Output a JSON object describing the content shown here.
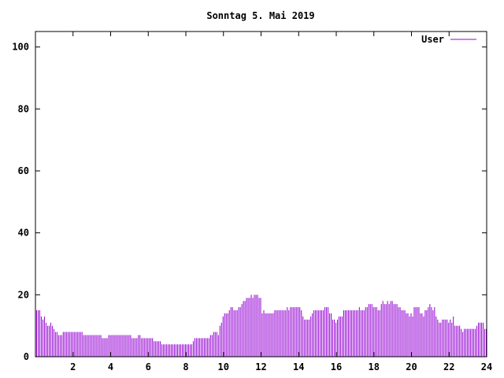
{
  "chart_data": {
    "type": "bar",
    "title": "Sonntag 5. Mai 2019",
    "xlabel": "",
    "ylabel": "",
    "xlim": [
      0,
      24
    ],
    "ylim": [
      0,
      105
    ],
    "xticks": [
      2,
      4,
      6,
      8,
      10,
      12,
      14,
      16,
      18,
      20,
      22,
      24
    ],
    "yticks": [
      0,
      20,
      40,
      60,
      80,
      100
    ],
    "grid": false,
    "legend_position": "top-right",
    "series": [
      {
        "name": "User",
        "color": "#9400d3",
        "points": [
          [
            0.083,
            15
          ],
          [
            0.167,
            15
          ],
          [
            0.25,
            15
          ],
          [
            0.333,
            13
          ],
          [
            0.417,
            12
          ],
          [
            0.5,
            13
          ],
          [
            0.583,
            11
          ],
          [
            0.667,
            10
          ],
          [
            0.75,
            10
          ],
          [
            0.833,
            11
          ],
          [
            0.917,
            10
          ],
          [
            1.0,
            9
          ],
          [
            1.083,
            8
          ],
          [
            1.167,
            8
          ],
          [
            1.25,
            7
          ],
          [
            1.333,
            7
          ],
          [
            1.417,
            7
          ],
          [
            1.5,
            8
          ],
          [
            1.583,
            8
          ],
          [
            1.667,
            8
          ],
          [
            1.75,
            8
          ],
          [
            1.833,
            8
          ],
          [
            1.917,
            8
          ],
          [
            2.0,
            8
          ],
          [
            2.083,
            8
          ],
          [
            2.167,
            8
          ],
          [
            2.25,
            8
          ],
          [
            2.333,
            8
          ],
          [
            2.417,
            8
          ],
          [
            2.5,
            8
          ],
          [
            2.583,
            7
          ],
          [
            2.667,
            7
          ],
          [
            2.75,
            7
          ],
          [
            2.833,
            7
          ],
          [
            2.917,
            7
          ],
          [
            3.0,
            7
          ],
          [
            3.083,
            7
          ],
          [
            3.167,
            7
          ],
          [
            3.25,
            7
          ],
          [
            3.333,
            7
          ],
          [
            3.417,
            7
          ],
          [
            3.5,
            7
          ],
          [
            3.583,
            6
          ],
          [
            3.667,
            6
          ],
          [
            3.75,
            6
          ],
          [
            3.833,
            6
          ],
          [
            3.917,
            7
          ],
          [
            4.0,
            7
          ],
          [
            4.083,
            7
          ],
          [
            4.167,
            7
          ],
          [
            4.25,
            7
          ],
          [
            4.333,
            7
          ],
          [
            4.417,
            7
          ],
          [
            4.5,
            7
          ],
          [
            4.583,
            7
          ],
          [
            4.667,
            7
          ],
          [
            4.75,
            7
          ],
          [
            4.833,
            7
          ],
          [
            4.917,
            7
          ],
          [
            5.0,
            7
          ],
          [
            5.083,
            7
          ],
          [
            5.167,
            6
          ],
          [
            5.25,
            6
          ],
          [
            5.333,
            6
          ],
          [
            5.417,
            6
          ],
          [
            5.5,
            7
          ],
          [
            5.583,
            7
          ],
          [
            5.667,
            6
          ],
          [
            5.75,
            6
          ],
          [
            5.833,
            6
          ],
          [
            5.917,
            6
          ],
          [
            6.0,
            6
          ],
          [
            6.083,
            6
          ],
          [
            6.167,
            6
          ],
          [
            6.25,
            6
          ],
          [
            6.333,
            5
          ],
          [
            6.417,
            5
          ],
          [
            6.5,
            5
          ],
          [
            6.583,
            5
          ],
          [
            6.667,
            5
          ],
          [
            6.75,
            4
          ],
          [
            6.833,
            4
          ],
          [
            6.917,
            4
          ],
          [
            7.0,
            4
          ],
          [
            7.083,
            4
          ],
          [
            7.167,
            4
          ],
          [
            7.25,
            4
          ],
          [
            7.333,
            4
          ],
          [
            7.417,
            4
          ],
          [
            7.5,
            4
          ],
          [
            7.583,
            4
          ],
          [
            7.667,
            4
          ],
          [
            7.75,
            4
          ],
          [
            7.833,
            4
          ],
          [
            7.917,
            4
          ],
          [
            8.0,
            4
          ],
          [
            8.083,
            4
          ],
          [
            8.167,
            4
          ],
          [
            8.25,
            4
          ],
          [
            8.333,
            4
          ],
          [
            8.417,
            5
          ],
          [
            8.5,
            6
          ],
          [
            8.583,
            6
          ],
          [
            8.667,
            6
          ],
          [
            8.75,
            6
          ],
          [
            8.833,
            6
          ],
          [
            8.917,
            6
          ],
          [
            9.0,
            6
          ],
          [
            9.083,
            6
          ],
          [
            9.167,
            6
          ],
          [
            9.25,
            6
          ],
          [
            9.333,
            7
          ],
          [
            9.417,
            7
          ],
          [
            9.5,
            8
          ],
          [
            9.583,
            8
          ],
          [
            9.667,
            8
          ],
          [
            9.75,
            7
          ],
          [
            9.833,
            10
          ],
          [
            9.917,
            11
          ],
          [
            10.0,
            13
          ],
          [
            10.083,
            14
          ],
          [
            10.167,
            14
          ],
          [
            10.25,
            14
          ],
          [
            10.333,
            15
          ],
          [
            10.417,
            16
          ],
          [
            10.5,
            16
          ],
          [
            10.583,
            15
          ],
          [
            10.667,
            15
          ],
          [
            10.75,
            15
          ],
          [
            10.833,
            16
          ],
          [
            10.917,
            16
          ],
          [
            11.0,
            17
          ],
          [
            11.083,
            18
          ],
          [
            11.167,
            18
          ],
          [
            11.25,
            19
          ],
          [
            11.333,
            19
          ],
          [
            11.417,
            19
          ],
          [
            11.5,
            20
          ],
          [
            11.583,
            19
          ],
          [
            11.667,
            20
          ],
          [
            11.75,
            20
          ],
          [
            11.833,
            20
          ],
          [
            11.917,
            19
          ],
          [
            12.0,
            19
          ],
          [
            12.083,
            14
          ],
          [
            12.167,
            15
          ],
          [
            12.25,
            14
          ],
          [
            12.333,
            14
          ],
          [
            12.417,
            14
          ],
          [
            12.5,
            14
          ],
          [
            12.583,
            14
          ],
          [
            12.667,
            14
          ],
          [
            12.75,
            15
          ],
          [
            12.833,
            15
          ],
          [
            12.917,
            15
          ],
          [
            13.0,
            15
          ],
          [
            13.083,
            15
          ],
          [
            13.167,
            15
          ],
          [
            13.25,
            15
          ],
          [
            13.333,
            15
          ],
          [
            13.417,
            16
          ],
          [
            13.5,
            15
          ],
          [
            13.583,
            16
          ],
          [
            13.667,
            16
          ],
          [
            13.75,
            16
          ],
          [
            13.833,
            16
          ],
          [
            13.917,
            16
          ],
          [
            14.0,
            16
          ],
          [
            14.083,
            16
          ],
          [
            14.167,
            15
          ],
          [
            14.25,
            13
          ],
          [
            14.333,
            12
          ],
          [
            14.417,
            12
          ],
          [
            14.5,
            12
          ],
          [
            14.583,
            12
          ],
          [
            14.667,
            13
          ],
          [
            14.75,
            14
          ],
          [
            14.833,
            15
          ],
          [
            14.917,
            15
          ],
          [
            15.0,
            15
          ],
          [
            15.083,
            15
          ],
          [
            15.167,
            15
          ],
          [
            15.25,
            15
          ],
          [
            15.333,
            15
          ],
          [
            15.417,
            16
          ],
          [
            15.5,
            16
          ],
          [
            15.583,
            16
          ],
          [
            15.667,
            14
          ],
          [
            15.75,
            14
          ],
          [
            15.833,
            12
          ],
          [
            15.917,
            12
          ],
          [
            16.0,
            11
          ],
          [
            16.083,
            12
          ],
          [
            16.167,
            13
          ],
          [
            16.25,
            13
          ],
          [
            16.333,
            13
          ],
          [
            16.417,
            15
          ],
          [
            16.5,
            15
          ],
          [
            16.583,
            15
          ],
          [
            16.667,
            15
          ],
          [
            16.75,
            15
          ],
          [
            16.833,
            15
          ],
          [
            16.917,
            15
          ],
          [
            17.0,
            15
          ],
          [
            17.083,
            15
          ],
          [
            17.167,
            15
          ],
          [
            17.25,
            16
          ],
          [
            17.333,
            15
          ],
          [
            17.417,
            15
          ],
          [
            17.5,
            15
          ],
          [
            17.583,
            16
          ],
          [
            17.667,
            16
          ],
          [
            17.75,
            17
          ],
          [
            17.833,
            17
          ],
          [
            17.917,
            17
          ],
          [
            18.0,
            16
          ],
          [
            18.083,
            16
          ],
          [
            18.167,
            16
          ],
          [
            18.25,
            15
          ],
          [
            18.333,
            15
          ],
          [
            18.417,
            17
          ],
          [
            18.5,
            18
          ],
          [
            18.583,
            17
          ],
          [
            18.667,
            17
          ],
          [
            18.75,
            18
          ],
          [
            18.833,
            17
          ],
          [
            18.917,
            18
          ],
          [
            19.0,
            18
          ],
          [
            19.083,
            17
          ],
          [
            19.167,
            17
          ],
          [
            19.25,
            17
          ],
          [
            19.333,
            16
          ],
          [
            19.417,
            16
          ],
          [
            19.5,
            15
          ],
          [
            19.583,
            15
          ],
          [
            19.667,
            15
          ],
          [
            19.75,
            14
          ],
          [
            19.833,
            14
          ],
          [
            19.917,
            13
          ],
          [
            20.0,
            14
          ],
          [
            20.083,
            13
          ],
          [
            20.167,
            16
          ],
          [
            20.25,
            16
          ],
          [
            20.333,
            16
          ],
          [
            20.417,
            16
          ],
          [
            20.5,
            14
          ],
          [
            20.583,
            14
          ],
          [
            20.667,
            13
          ],
          [
            20.75,
            15
          ],
          [
            20.833,
            15
          ],
          [
            20.917,
            16
          ],
          [
            21.0,
            17
          ],
          [
            21.083,
            16
          ],
          [
            21.167,
            15
          ],
          [
            21.25,
            16
          ],
          [
            21.333,
            13
          ],
          [
            21.417,
            12
          ],
          [
            21.5,
            11
          ],
          [
            21.583,
            11
          ],
          [
            21.667,
            12
          ],
          [
            21.75,
            12
          ],
          [
            21.833,
            12
          ],
          [
            21.917,
            12
          ],
          [
            22.0,
            11
          ],
          [
            22.083,
            12
          ],
          [
            22.167,
            11
          ],
          [
            22.25,
            13
          ],
          [
            22.333,
            10
          ],
          [
            22.417,
            10
          ],
          [
            22.5,
            10
          ],
          [
            22.583,
            10
          ],
          [
            22.667,
            9
          ],
          [
            22.75,
            8
          ],
          [
            22.833,
            9
          ],
          [
            22.917,
            9
          ],
          [
            23.0,
            9
          ],
          [
            23.083,
            9
          ],
          [
            23.167,
            9
          ],
          [
            23.25,
            9
          ],
          [
            23.333,
            9
          ],
          [
            23.417,
            9
          ],
          [
            23.5,
            10
          ],
          [
            23.583,
            11
          ],
          [
            23.667,
            11
          ],
          [
            23.75,
            11
          ],
          [
            23.833,
            11
          ],
          [
            23.917,
            9
          ],
          [
            24.0,
            9
          ]
        ]
      }
    ]
  }
}
